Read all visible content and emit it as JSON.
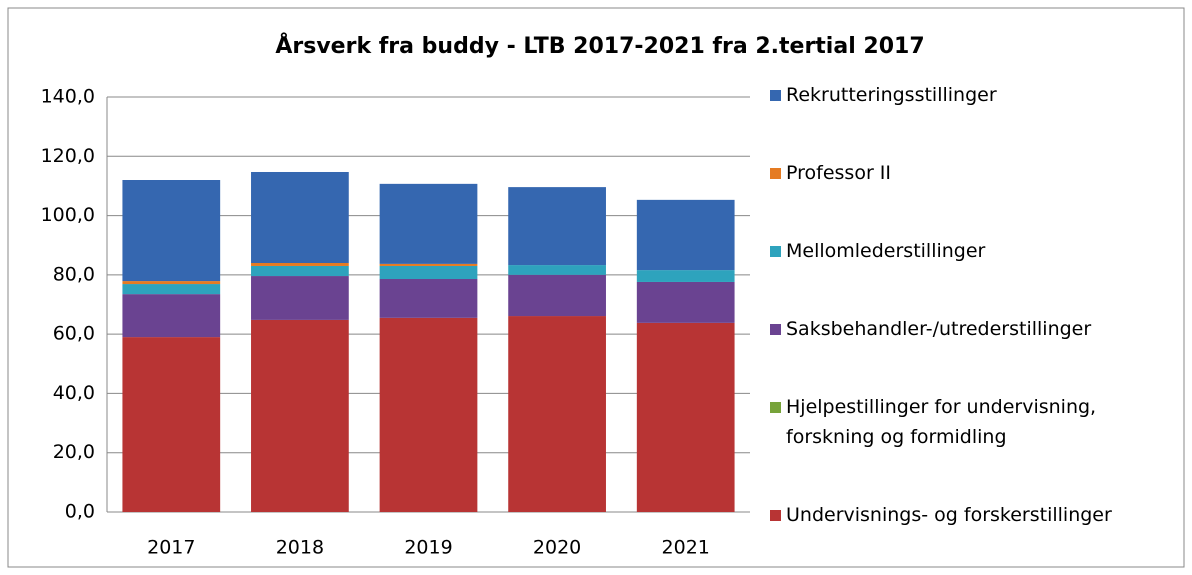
{
  "chart_data": {
    "type": "stacked_bar",
    "title": "Årsverk fra buddy - LTB 2017-2021 fra 2.tertial 2017",
    "categories": [
      "2017",
      "2018",
      "2019",
      "2020",
      "2021"
    ],
    "series": [
      {
        "name": "Undervisnings- og forskerstillinger",
        "color": "#b83434",
        "values": [
          59.0,
          64.8,
          65.5,
          66.1,
          63.8
        ]
      },
      {
        "name": "Hjelpestillinger for undervisning, forskning og formidling",
        "color": "#77a33a",
        "values": [
          0,
          0,
          0,
          0,
          0
        ]
      },
      {
        "name": "Saksbehandler-/utrederstillinger",
        "color": "#6a4391",
        "values": [
          14.5,
          14.8,
          13.1,
          13.9,
          13.8
        ]
      },
      {
        "name": "Mellomlederstillinger",
        "color": "#2ea3bd",
        "values": [
          3.4,
          3.4,
          4.4,
          3.3,
          4.0
        ]
      },
      {
        "name": "Professor II",
        "color": "#e57b22",
        "values": [
          1.0,
          1.0,
          0.7,
          0,
          0
        ]
      },
      {
        "name": "Rekrutteringsstillinger",
        "color": "#3567b0",
        "values": [
          34.1,
          30.7,
          27.0,
          26.3,
          23.7
        ]
      }
    ],
    "ylim": [
      0,
      140
    ],
    "yticks": [
      {
        "value": 0,
        "label": "0,0"
      },
      {
        "value": 20,
        "label": "20,0"
      },
      {
        "value": 40,
        "label": "40,0"
      },
      {
        "value": 60,
        "label": "60,0"
      },
      {
        "value": 80,
        "label": "80,0"
      },
      {
        "value": 100,
        "label": "100,0"
      },
      {
        "value": 120,
        "label": "120,0"
      },
      {
        "value": 140,
        "label": "140,0"
      }
    ],
    "grid": true,
    "legend": "right"
  }
}
